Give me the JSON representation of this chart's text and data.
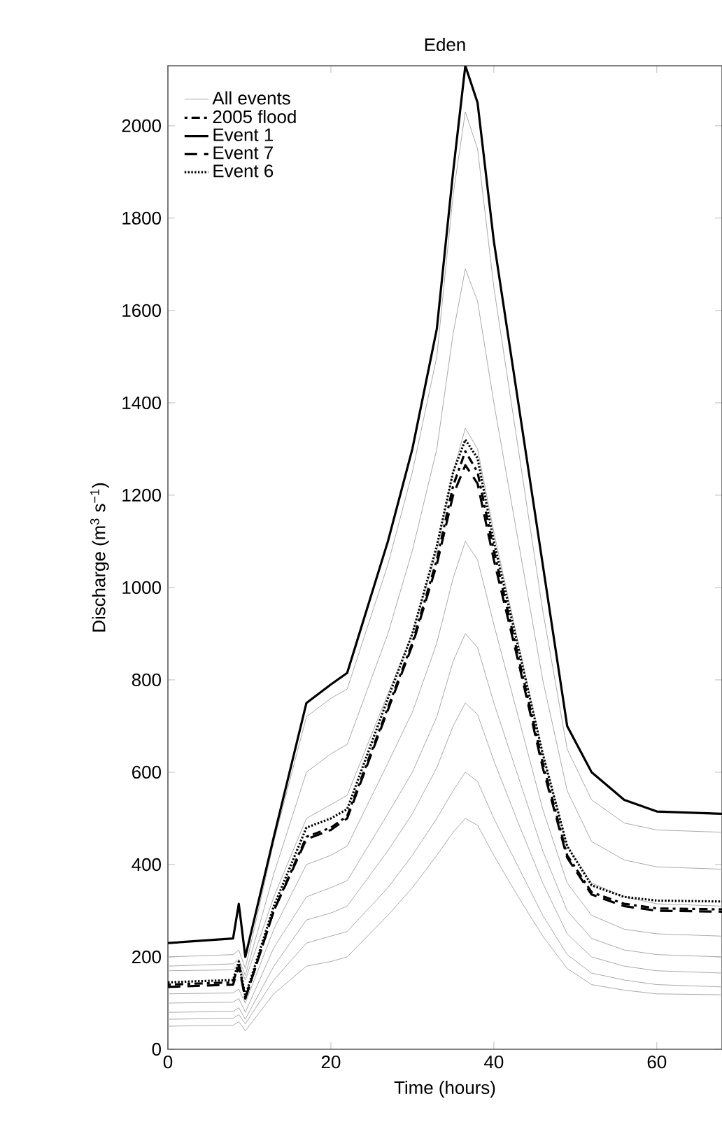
{
  "chart_data": {
    "type": "line",
    "title": "Eden",
    "xlabel": "Time (hours)",
    "ylabel": "Discharge (m$^{3}$ s$^{−1}$)",
    "x": [
      0,
      8,
      8.7,
      9.5,
      13,
      17,
      20,
      22,
      27,
      30,
      33,
      35,
      36.5,
      38,
      40,
      43,
      46,
      49,
      52,
      56,
      60,
      68
    ],
    "xlim": [
      0,
      68
    ],
    "ylim": [
      0,
      2130
    ],
    "xticks": [
      0,
      20,
      40,
      60
    ],
    "yticks": [
      0,
      200,
      400,
      600,
      800,
      1000,
      1200,
      1400,
      1600,
      1800,
      2000
    ],
    "legend": "top left",
    "series": [
      {
        "name": "All events",
        "color": "#aaaaaa",
        "line_style": "solid",
        "values": [
          200,
          205,
          215,
          175,
          450,
          720,
          760,
          780,
          1050,
          1250,
          1500,
          1850,
          2030,
          1950,
          1650,
          1300,
          950,
          650,
          540,
          490,
          475,
          470
        ]
      },
      {
        "color": "#aaaaaa",
        "line_style": "solid",
        "values": [
          180,
          185,
          195,
          160,
          380,
          600,
          640,
          660,
          900,
          1080,
          1300,
          1550,
          1690,
          1620,
          1400,
          1100,
          800,
          560,
          450,
          410,
          395,
          390
        ]
      },
      {
        "color": "#aaaaaa",
        "line_style": "solid",
        "values": [
          170,
          172,
          185,
          150,
          330,
          500,
          530,
          550,
          770,
          900,
          1080,
          1250,
          1345,
          1300,
          1120,
          880,
          640,
          440,
          360,
          330,
          315,
          310
        ]
      },
      {
        "color": "#aaaaaa",
        "line_style": "solid",
        "values": [
          120,
          122,
          130,
          100,
          260,
          400,
          420,
          440,
          620,
          730,
          880,
          1020,
          1100,
          1060,
          920,
          720,
          520,
          360,
          290,
          260,
          250,
          245
        ]
      },
      {
        "color": "#aaaaaa",
        "line_style": "solid",
        "values": [
          100,
          102,
          110,
          80,
          220,
          330,
          350,
          365,
          510,
          600,
          720,
          840,
          900,
          870,
          750,
          590,
          430,
          300,
          240,
          215,
          205,
          200
        ]
      },
      {
        "color": "#aaaaaa",
        "line_style": "solid",
        "values": [
          80,
          82,
          90,
          65,
          180,
          280,
          295,
          310,
          430,
          510,
          610,
          700,
          750,
          725,
          625,
          490,
          360,
          250,
          200,
          180,
          170,
          165
        ]
      },
      {
        "color": "#aaaaaa",
        "line_style": "solid",
        "values": [
          65,
          67,
          75,
          55,
          150,
          230,
          245,
          255,
          350,
          420,
          500,
          560,
          600,
          580,
          500,
          395,
          290,
          205,
          165,
          150,
          140,
          135
        ]
      },
      {
        "color": "#aaaaaa",
        "line_style": "solid",
        "values": [
          50,
          52,
          60,
          40,
          120,
          180,
          190,
          200,
          290,
          350,
          420,
          470,
          500,
          485,
          420,
          330,
          245,
          175,
          140,
          128,
          120,
          118
        ]
      },
      {
        "name": "2005 flood",
        "color": "#000000",
        "line_style": "dashdot",
        "values": [
          140,
          145,
          185,
          110,
          300,
          460,
          480,
          505,
          740,
          880,
          1060,
          1220,
          1295,
          1250,
          1080,
          850,
          620,
          420,
          340,
          315,
          305,
          303
        ]
      },
      {
        "name": "Event 1",
        "color": "#000000",
        "line_style": "solid",
        "values": [
          230,
          240,
          315,
          200,
          460,
          750,
          790,
          815,
          1100,
          1300,
          1560,
          1900,
          2130,
          2050,
          1750,
          1400,
          1050,
          700,
          600,
          540,
          515,
          510
        ]
      },
      {
        "name": "Event 7",
        "color": "#000000",
        "line_style": "dashed",
        "values": [
          135,
          140,
          180,
          110,
          300,
          455,
          475,
          500,
          735,
          875,
          1050,
          1200,
          1265,
          1225,
          1060,
          840,
          610,
          415,
          335,
          310,
          300,
          298
        ]
      },
      {
        "name": "Event 6",
        "color": "#000000",
        "line_style": "dotted",
        "values": [
          145,
          150,
          190,
          115,
          310,
          480,
          500,
          520,
          760,
          900,
          1090,
          1250,
          1320,
          1280,
          1100,
          870,
          640,
          440,
          355,
          330,
          322,
          320
        ]
      }
    ]
  }
}
